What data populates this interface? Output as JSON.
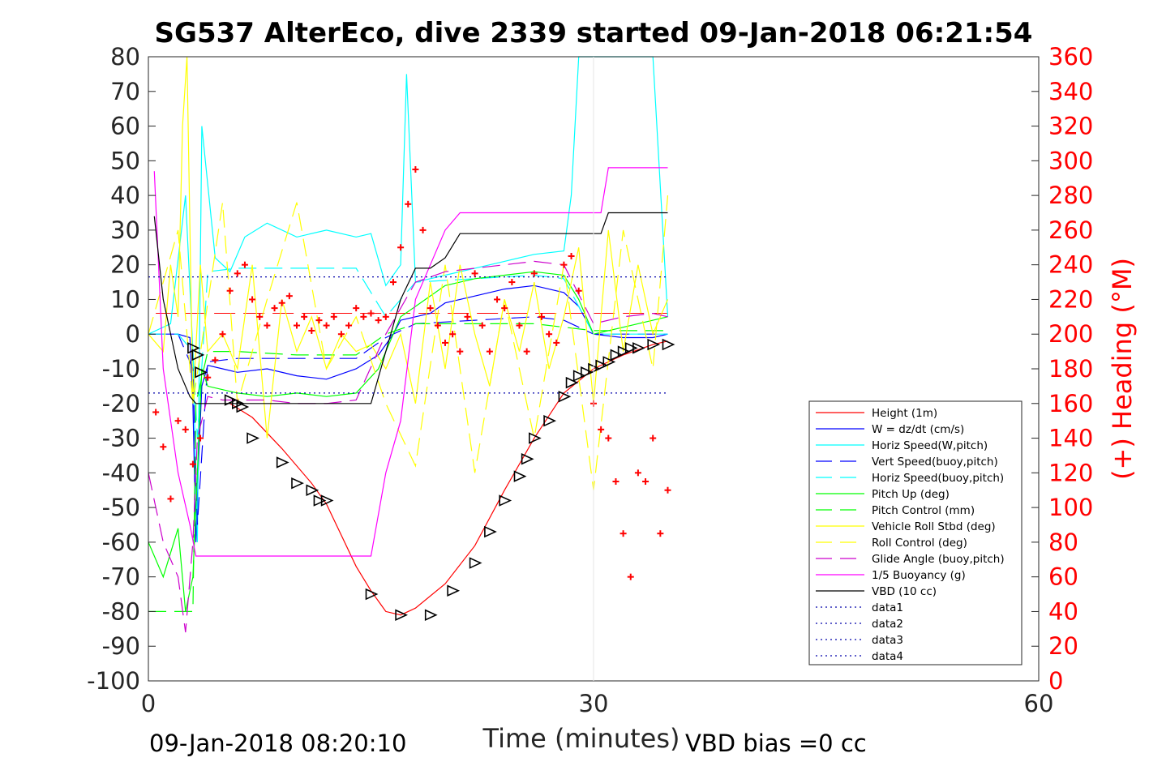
{
  "chart_data": {
    "type": "line",
    "title": "SG537 AlterEco, dive 2339 started 09-Jan-2018 06:21:54",
    "xlabel": "Time (minutes)",
    "ylabel": "",
    "y2label": "(+) Heading (°M)",
    "xlim": [
      0,
      60
    ],
    "ylim": [
      -100,
      80
    ],
    "y2lim": [
      0,
      360
    ],
    "xticks": [
      "0",
      "30",
      "60"
    ],
    "yticks": [
      "80",
      "70",
      "60",
      "50",
      "40",
      "30",
      "20",
      "10",
      "0",
      "-10",
      "-20",
      "-30",
      "-40",
      "-50",
      "-60",
      "-70",
      "-80",
      "-90",
      "-100"
    ],
    "y2ticks": [
      "360",
      "340",
      "320",
      "300",
      "280",
      "260",
      "240",
      "220",
      "200",
      "180",
      "160",
      "140",
      "120",
      "100",
      "80",
      "60",
      "40",
      "20",
      "0"
    ],
    "grid": false,
    "legend_position": "lower-right",
    "footer_left": "09-Jan-2018 08:20:10",
    "footer_right": "VBD bias =0 cc",
    "colors": {
      "height": "#ff0000",
      "w": "#0000ff",
      "horiz_w": "#00ffff",
      "vert_buoy": "#0000ff",
      "horiz_buoy": "#00ffff",
      "pitch_up": "#00ff00",
      "pitch_ctrl": "#00ff00",
      "roll": "#ffff00",
      "roll_ctrl": "#ffff00",
      "glide": "#cc00cc",
      "buoy": "#ff00ff",
      "vbd": "#000000",
      "heading": "#ff0000",
      "data": "#0000aa"
    },
    "series": [
      {
        "name": "Height (1m)",
        "key": "height",
        "style": "solid",
        "x": [
          5.5,
          7,
          9,
          11,
          12,
          13,
          14,
          15,
          15.5,
          16,
          17,
          18,
          20,
          22,
          24,
          26,
          28,
          30,
          32,
          34,
          35
        ],
        "y": [
          -20,
          -24,
          -33,
          -43,
          -49,
          -58,
          -67,
          -74,
          -77,
          -80,
          -81,
          -79,
          -72,
          -61,
          -45,
          -30,
          -17,
          -10,
          -6,
          -3,
          -2
        ]
      },
      {
        "name": "W = dz/dt (cm/s)",
        "key": "w",
        "style": "solid",
        "x": [
          0,
          2,
          2.8,
          3,
          3.2,
          3.4,
          3.6,
          4,
          5,
          6,
          8,
          10,
          12,
          14,
          15.5,
          16.5,
          17,
          18,
          19,
          20,
          22,
          24,
          26,
          28,
          29,
          30,
          32,
          34,
          35
        ],
        "y": [
          0,
          0,
          -1,
          -20,
          -60,
          -35,
          -15,
          -9,
          -10,
          -11,
          -10,
          -12,
          -13,
          -10,
          -6,
          0,
          4,
          5,
          6,
          9,
          11,
          13,
          14,
          12,
          8,
          0,
          -1,
          -1,
          0
        ]
      },
      {
        "name": "Horiz Speed(W,pitch)",
        "key": "horiz_w",
        "style": "solid",
        "x": [
          0,
          1.5,
          2.5,
          3,
          3.3,
          3.6,
          4.5,
          5.5,
          6.5,
          8,
          10,
          12,
          14,
          15,
          16,
          17,
          17.4,
          18,
          19,
          20,
          22,
          24,
          26,
          28,
          28.5,
          29,
          30,
          31,
          32,
          33,
          34,
          35
        ],
        "y": [
          0,
          3,
          40,
          -5,
          -60,
          60,
          22,
          18,
          28,
          32,
          28,
          30,
          28,
          29,
          14,
          20,
          75,
          15,
          16,
          17,
          19,
          21,
          23,
          24,
          40,
          80,
          80,
          80,
          80,
          80,
          80,
          5
        ]
      },
      {
        "name": "Vert Speed(buoy,pitch)",
        "key": "vert_buoy",
        "style": "dashed",
        "x": [
          0,
          2,
          3,
          3.3,
          4,
          6,
          10,
          14,
          16,
          18,
          22,
          26,
          28,
          30,
          35
        ],
        "y": [
          0,
          0,
          -10,
          -55,
          -8,
          -7,
          -7,
          -7,
          -1,
          3,
          4,
          5,
          4,
          0,
          0
        ]
      },
      {
        "name": "Horiz Speed(buoy,pitch)",
        "key": "horiz_buoy",
        "style": "dashed",
        "x": [
          0,
          2,
          3,
          3.3,
          4,
          6,
          10,
          14,
          16,
          18,
          22,
          26,
          28,
          30,
          35
        ],
        "y": [
          0,
          0,
          -5,
          -30,
          18,
          19,
          19,
          19,
          5,
          15,
          16,
          17,
          16,
          0,
          0
        ]
      },
      {
        "name": "Pitch Up (deg)",
        "key": "pitch_up",
        "style": "solid",
        "x": [
          0,
          1,
          2,
          2.5,
          3,
          3.3,
          3.6,
          4,
          5,
          6,
          8,
          10,
          12,
          14,
          15.5,
          16.5,
          17,
          18,
          20,
          22,
          24,
          26,
          28,
          29,
          30,
          32,
          34,
          35
        ],
        "y": [
          -60,
          -70,
          -56,
          -80,
          -70,
          -40,
          -10,
          -15,
          -16,
          -17,
          -18,
          -17,
          -18,
          -17,
          -10,
          0,
          5,
          8,
          14,
          16,
          17,
          18,
          17,
          10,
          0,
          2,
          4,
          5
        ]
      },
      {
        "name": "Pitch Control (mm)",
        "key": "pitch_ctrl",
        "style": "dashed",
        "x": [
          0,
          3,
          3.2,
          4,
          6,
          10,
          14,
          16,
          18,
          22,
          26,
          30,
          35
        ],
        "y": [
          -80,
          -80,
          -20,
          -5,
          -5,
          -6,
          -6,
          0,
          3,
          3,
          3,
          1,
          1
        ]
      },
      {
        "name": "Vehicle Roll Stbd (deg)",
        "key": "roll",
        "style": "solid",
        "x": [
          0,
          1,
          1.5,
          2,
          2.3,
          2.6,
          3,
          3.5,
          4,
          5,
          6,
          7,
          8,
          9,
          10,
          11,
          12,
          13,
          14,
          15,
          16,
          17,
          18,
          19,
          20,
          21,
          22,
          23,
          24,
          25,
          26,
          27,
          28,
          29,
          30,
          31,
          32,
          33,
          34,
          35
        ],
        "y": [
          0,
          -5,
          20,
          5,
          60,
          80,
          -20,
          20,
          -5,
          0,
          -10,
          20,
          -30,
          10,
          -5,
          5,
          -10,
          0,
          -5,
          -3,
          -10,
          0,
          -20,
          15,
          -10,
          20,
          0,
          -15,
          10,
          -5,
          15,
          -10,
          5,
          25,
          -20,
          30,
          -5,
          20,
          0,
          10
        ]
      },
      {
        "name": "Roll Control (deg)",
        "key": "roll_ctrl",
        "style": "dashed",
        "x": [
          0,
          2,
          3,
          5,
          6,
          8,
          10,
          12,
          14,
          16,
          18,
          20,
          22,
          24,
          26,
          28,
          30,
          32,
          34,
          35
        ],
        "y": [
          0,
          30,
          -20,
          38,
          -20,
          10,
          38,
          -10,
          5,
          -20,
          -38,
          20,
          -40,
          10,
          -30,
          20,
          -45,
          30,
          -10,
          40
        ]
      },
      {
        "name": "Glide Angle (buoy,pitch)",
        "key": "glide",
        "style": "dashed",
        "x": [
          0,
          1,
          2,
          2.5,
          3,
          3.3,
          4,
          5,
          6,
          8,
          10,
          12,
          14,
          16,
          18,
          20,
          22,
          24,
          26,
          28,
          30,
          32,
          34,
          35
        ],
        "y": [
          -40,
          -60,
          -70,
          -86,
          -60,
          -30,
          -18,
          -19,
          -19,
          -19,
          -20,
          -20,
          -19,
          0,
          15,
          18,
          19,
          20,
          21,
          20,
          3,
          5,
          6,
          5
        ]
      },
      {
        "name": "1/5 Buoyancy (g)",
        "key": "buoy",
        "style": "solid",
        "x": [
          0.4,
          1,
          2,
          2.8,
          3.2,
          5,
          10,
          15,
          16,
          17,
          18,
          19,
          20,
          21,
          30,
          30.5,
          31,
          32,
          35
        ],
        "y": [
          47,
          -10,
          -40,
          -55,
          -64,
          -64,
          -64,
          -64,
          -40,
          -25,
          10,
          20,
          30,
          35,
          35,
          35,
          48,
          48,
          48
        ]
      },
      {
        "name": "VBD (10 cc)",
        "key": "vbd",
        "style": "solid",
        "x": [
          0.4,
          1,
          2,
          2.8,
          3.2,
          5,
          10,
          15,
          16,
          17,
          18,
          19,
          20,
          21,
          30,
          30.5,
          31,
          32,
          35
        ],
        "y": [
          34,
          10,
          -10,
          -18,
          -20,
          -20,
          -20,
          -20,
          -5,
          10,
          19,
          19,
          22,
          29,
          29,
          29,
          35,
          35,
          35
        ]
      },
      {
        "name": "data1",
        "key": "data",
        "style": "dotted",
        "x": [],
        "y": []
      },
      {
        "name": "data2",
        "key": "data",
        "style": "dotted",
        "x": [],
        "y": []
      },
      {
        "name": "data3",
        "key": "data",
        "style": "dotted",
        "x": [
          0,
          35
        ],
        "y": [
          16.5,
          16.5
        ]
      },
      {
        "name": "data4",
        "key": "data",
        "style": "dotted",
        "x": [
          0,
          35
        ],
        "y": [
          -17,
          -17
        ]
      }
    ],
    "reference_lines": [
      {
        "key": "height",
        "style": "longdash",
        "y": 6,
        "x": [
          0.5,
          35
        ]
      }
    ],
    "heading_points": {
      "x": [
        0.5,
        1,
        1.5,
        2,
        2.5,
        3,
        3.5,
        4,
        4.5,
        5,
        5.5,
        6,
        6.5,
        7,
        7.5,
        8,
        8.5,
        9,
        9.5,
        10,
        10.5,
        11,
        11.5,
        12,
        12.5,
        13,
        13.5,
        14,
        14.5,
        15,
        15.5,
        16,
        16.5,
        17,
        17.5,
        18,
        18.5,
        19,
        19.5,
        20,
        20.5,
        21,
        21.5,
        22,
        22.5,
        23,
        23.5,
        24,
        24.5,
        25,
        25.5,
        26,
        26.5,
        27,
        27.5,
        28,
        28.5,
        29,
        30,
        30.5,
        31,
        31.5,
        32,
        32.5,
        33,
        33.5,
        34,
        34.5,
        35
      ],
      "y": [
        155,
        135,
        105,
        150,
        145,
        125,
        140,
        175,
        185,
        200,
        225,
        235,
        240,
        220,
        210,
        205,
        215,
        218,
        222,
        205,
        210,
        202,
        208,
        205,
        210,
        200,
        205,
        215,
        210,
        212,
        208,
        210,
        230,
        250,
        275,
        295,
        260,
        215,
        205,
        195,
        200,
        190,
        210,
        235,
        205,
        190,
        220,
        215,
        230,
        205,
        190,
        235,
        210,
        200,
        195,
        240,
        245,
        225,
        160,
        145,
        140,
        115,
        85,
        60,
        120,
        115,
        140,
        85,
        110
      ]
    },
    "dive_markers": {
      "x": [
        3,
        3.3,
        3.5,
        5.5,
        6,
        6.3,
        7,
        9,
        10,
        11,
        11.5,
        12,
        15,
        17,
        19,
        20.5,
        22,
        23,
        24,
        25,
        25.5,
        26,
        27,
        28,
        28.5,
        29,
        29.5,
        30,
        30.5,
        31,
        31.5,
        32,
        32.5,
        33,
        34,
        35
      ],
      "y": [
        -4,
        -6,
        -11,
        -19,
        -20,
        -21,
        -30,
        -37,
        -43,
        -45,
        -48,
        -48,
        -75,
        -81,
        -81,
        -74,
        -66,
        -57,
        -48,
        -41,
        -36,
        -30,
        -25,
        -18,
        -14,
        -12,
        -11,
        -10,
        -9,
        -8,
        -6,
        -5,
        -4,
        -4,
        -3,
        -3
      ]
    }
  }
}
